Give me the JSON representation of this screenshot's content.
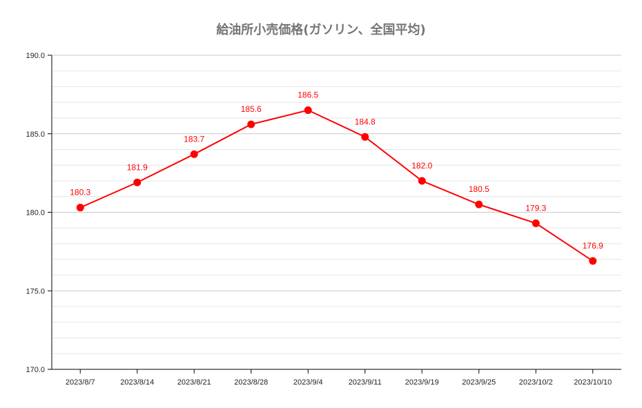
{
  "chart_data": {
    "type": "line",
    "title": "給油所小売価格(ガソリン、全国平均)",
    "xlabel": "",
    "ylabel": "",
    "categories": [
      "2023/8/7",
      "2023/8/14",
      "2023/8/21",
      "2023/8/28",
      "2023/9/4",
      "2023/9/11",
      "2023/9/19",
      "2023/9/25",
      "2023/10/2",
      "2023/10/10"
    ],
    "series": [
      {
        "values": [
          180.3,
          181.9,
          183.7,
          185.6,
          186.5,
          184.8,
          182.0,
          180.5,
          179.3,
          176.9
        ],
        "color": "#ff0000"
      }
    ],
    "data_labels": [
      "180.3",
      "181.9",
      "183.7",
      "185.6",
      "186.5",
      "184.8",
      "182.0",
      "180.5",
      "179.3",
      "176.9"
    ],
    "ylim": [
      170,
      190
    ],
    "yticks": [
      "170.0",
      "175.0",
      "180.0",
      "185.0",
      "190.0"
    ],
    "ytick_values": [
      170,
      175,
      180,
      185,
      190
    ],
    "minor_grid_step": 1,
    "grid": true,
    "legend": "none"
  }
}
